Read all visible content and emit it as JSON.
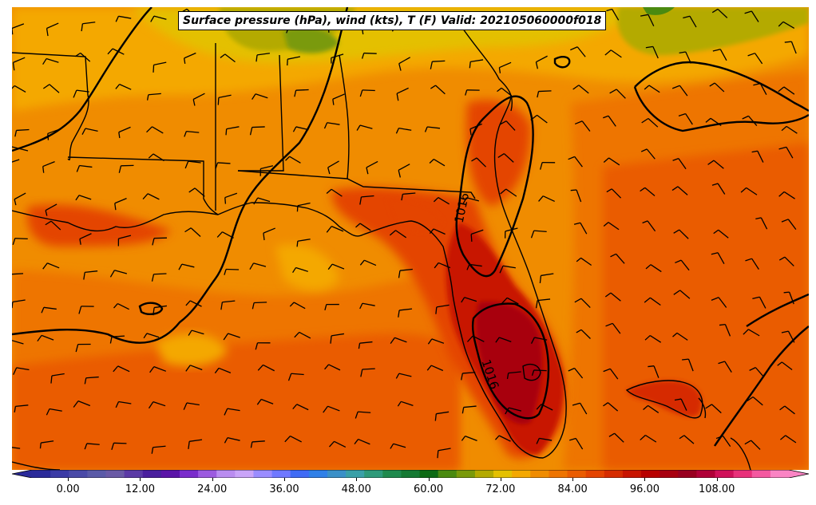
{
  "title": "Surface pressure (hPa), wind (kts), T (F) Valid: 202105060000f018",
  "contour_labels": [
    "1016",
    "1016"
  ],
  "colorbar": {
    "ticks": [
      "0.00",
      "12.00",
      "24.00",
      "36.00",
      "48.00",
      "60.00",
      "72.00",
      "84.00",
      "96.00",
      "108.00"
    ],
    "min": -6,
    "max": 120,
    "colors": [
      "#2a2a9a",
      "#3b3ba6",
      "#4a4aa8",
      "#5a5aa8",
      "#6a5aa6",
      "#5b3aa6",
      "#4a1f9e",
      "#5a14a8",
      "#7a2ccc",
      "#9c5ae0",
      "#b98cf0",
      "#c9a4f8",
      "#9a8cff",
      "#6f78ff",
      "#3f6bf5",
      "#2f80e8",
      "#3a90c8",
      "#3aa0a8",
      "#2e9a7a",
      "#1f8a4e",
      "#157a34",
      "#0c6a14",
      "#4a8a10",
      "#7a9a0a",
      "#b4aa00",
      "#e4c000",
      "#f4a800",
      "#f08c00",
      "#ee7400",
      "#ea5c00",
      "#e44400",
      "#d62c00",
      "#c81400",
      "#b80000",
      "#a80010",
      "#980020",
      "#b00038",
      "#d0105a",
      "#e8307a",
      "#f458a0",
      "#fa84c4"
    ]
  }
}
